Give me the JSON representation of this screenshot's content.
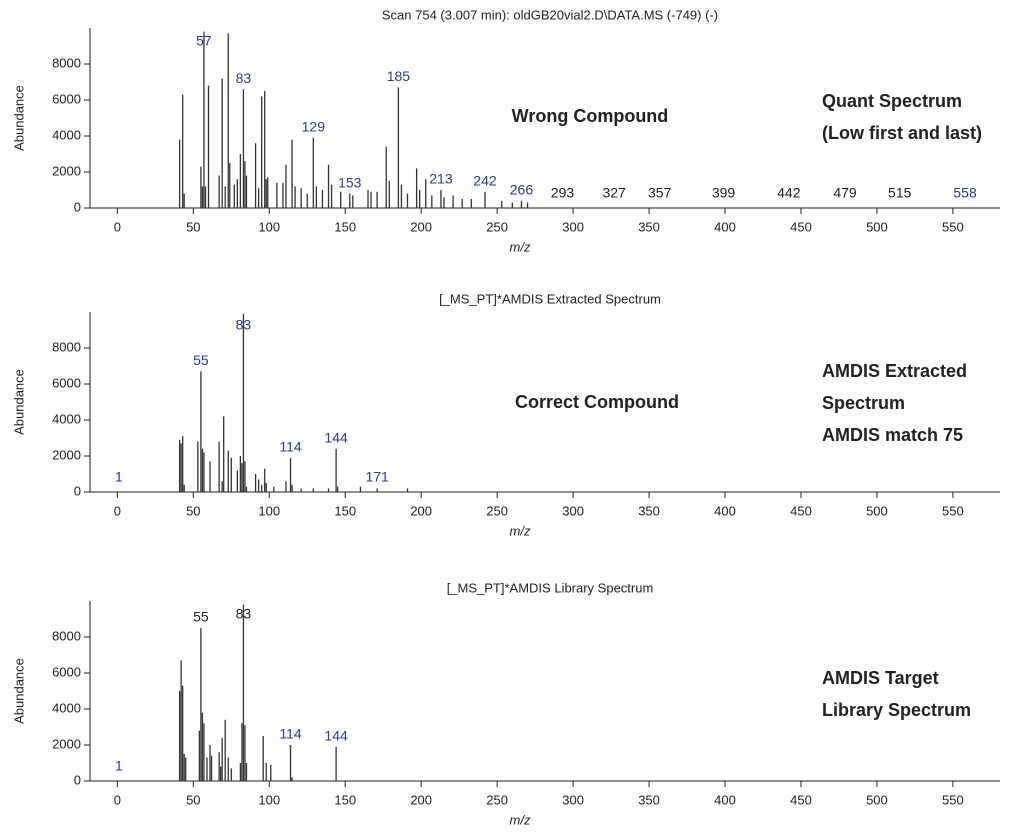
{
  "chart_data": [
    {
      "type": "stem",
      "title": "Scan 754 (3.007 min): oldGB20vial2.D\\DATA.MS (-749) (-)",
      "xlabel": "m/z",
      "ylabel": "Abundance",
      "xlim": [
        -18,
        581
      ],
      "ylim": [
        0,
        10000
      ],
      "xticks": [
        0,
        50,
        100,
        150,
        200,
        250,
        300,
        350,
        400,
        450,
        500,
        550
      ],
      "yticks": [
        0,
        2000,
        4000,
        6000,
        8000
      ],
      "color": "#333333",
      "x": [
        41,
        43,
        44,
        55,
        56,
        57,
        58,
        60,
        67,
        69,
        71,
        73,
        74,
        77,
        79,
        81,
        83,
        84,
        85,
        91,
        93,
        95,
        97,
        98,
        99,
        105,
        109,
        111,
        115,
        117,
        121,
        125,
        129,
        131,
        135,
        139,
        141,
        147,
        153,
        155,
        165,
        167,
        171,
        177,
        179,
        185,
        187,
        191,
        197,
        199,
        203,
        207,
        213,
        215,
        221,
        227,
        233,
        242,
        253,
        260,
        266,
        270
      ],
      "values": [
        3800,
        6300,
        800,
        2300,
        1200,
        9800,
        1200,
        6800,
        1800,
        7200,
        1200,
        9700,
        2500,
        1300,
        1600,
        3000,
        6600,
        2600,
        1800,
        3600,
        1100,
        6200,
        6500,
        1600,
        1700,
        1400,
        1400,
        2400,
        3800,
        1200,
        1100,
        800,
        3900,
        1200,
        1000,
        2400,
        1300,
        900,
        800,
        700,
        1000,
        900,
        900,
        3400,
        1500,
        6700,
        1300,
        800,
        2200,
        1000,
        1600,
        700,
        1000,
        600,
        700,
        500,
        500,
        900,
        400,
        300,
        400,
        300
      ],
      "peak_labels": [
        57,
        83,
        129,
        153,
        185,
        213,
        242,
        266,
        293,
        327,
        357,
        399,
        442,
        479,
        515,
        558
      ],
      "peak_label_colors": [
        "#2b3990",
        "#2b3990",
        "#2b3990",
        "#2b3990",
        "#2b3990",
        "#2b3990",
        "#2b3990",
        "#2b3990",
        "#222222",
        "#222222",
        "#222222",
        "#222222",
        "#222222",
        "#222222",
        "#222222",
        "#2b3990"
      ],
      "annotation": "Wrong Compound",
      "side_notes": [
        "Quant Spectrum",
        "(Low first and last)"
      ]
    },
    {
      "type": "stem",
      "title": "[_MS_PT]*AMDIS Extracted Spectrum",
      "xlabel": "m/z",
      "ylabel": "Abundance",
      "xlim": [
        -18,
        581
      ],
      "ylim": [
        0,
        10000
      ],
      "xticks": [
        0,
        50,
        100,
        150,
        200,
        250,
        300,
        350,
        400,
        450,
        500,
        550
      ],
      "yticks": [
        0,
        2000,
        4000,
        6000,
        8000
      ],
      "color": "#333333",
      "x": [
        41,
        42,
        43,
        44,
        53,
        55,
        56,
        57,
        61,
        67,
        69,
        70,
        73,
        75,
        79,
        81,
        82,
        83,
        84,
        85,
        91,
        93,
        95,
        97,
        98,
        103,
        111,
        114,
        115,
        121,
        129,
        139,
        144,
        145,
        160,
        171,
        191
      ],
      "values": [
        2900,
        2700,
        3100,
        400,
        2800,
        6700,
        2400,
        2200,
        1700,
        2800,
        600,
        4200,
        2300,
        1900,
        1200,
        2000,
        1600,
        9900,
        1700,
        300,
        1000,
        700,
        400,
        1300,
        500,
        300,
        600,
        1900,
        400,
        200,
        200,
        200,
        2400,
        300,
        300,
        200,
        200
      ],
      "peak_labels": [
        1,
        55,
        83,
        114,
        144,
        171
      ],
      "peak_label_colors": [
        "#2b3990",
        "#2b3990",
        "#2b3990",
        "#2b3990",
        "#2b3990",
        "#2b3990"
      ],
      "annotation": "Correct Compound",
      "side_notes": [
        "AMDIS Extracted",
        "Spectrum",
        "AMDIS match 75"
      ]
    },
    {
      "type": "stem",
      "title": "[_MS_PT]*AMDIS Library Spectrum",
      "xlabel": "m/z",
      "ylabel": "Abundance",
      "xlim": [
        -18,
        581
      ],
      "ylim": [
        0,
        10000
      ],
      "xticks": [
        0,
        50,
        100,
        150,
        200,
        250,
        300,
        350,
        400,
        450,
        500,
        550
      ],
      "yticks": [
        0,
        2000,
        4000,
        6000,
        8000
      ],
      "color": "#333333",
      "x": [
        41,
        42,
        43,
        44,
        45,
        54,
        55,
        56,
        57,
        59,
        61,
        62,
        67,
        68,
        69,
        71,
        73,
        75,
        81,
        82,
        83,
        84,
        85,
        96,
        98,
        101,
        114,
        115,
        144
      ],
      "values": [
        5000,
        6700,
        5300,
        1500,
        1300,
        2800,
        8500,
        3800,
        3200,
        1300,
        2000,
        1400,
        1600,
        800,
        2400,
        3400,
        1300,
        700,
        1000,
        3200,
        9800,
        3100,
        1000,
        2500,
        1000,
        900,
        2000,
        200,
        1900
      ],
      "peak_labels": [
        1,
        55,
        83,
        114,
        144
      ],
      "peak_label_colors": [
        "#2b3990",
        "#222222",
        "#222222",
        "#2b3990",
        "#2b3990"
      ],
      "side_notes": [
        "AMDIS Target",
        "Library Spectrum"
      ]
    }
  ]
}
